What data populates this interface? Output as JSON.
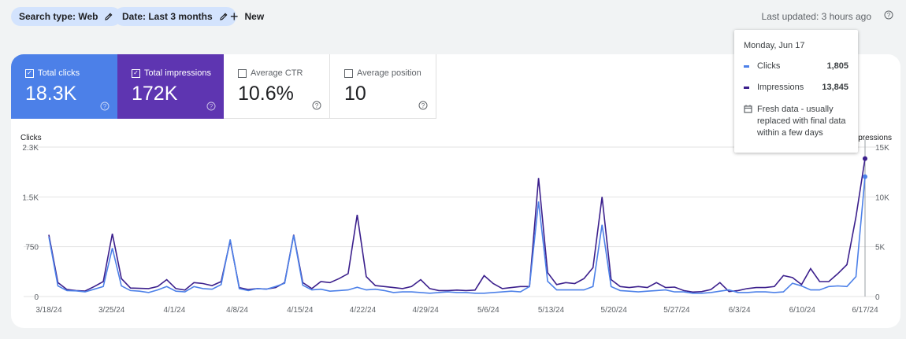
{
  "filters": {
    "search_type": "Search type: Web",
    "date": "Date: Last 3 months",
    "new_label": "New"
  },
  "last_updated": "Last updated: 3 hours ago",
  "metrics": [
    {
      "label": "Total clicks",
      "value": "18.3K",
      "checked": true
    },
    {
      "label": "Total impressions",
      "value": "172K",
      "checked": true
    },
    {
      "label": "Average CTR",
      "value": "10.6%",
      "checked": false
    },
    {
      "label": "Average position",
      "value": "10",
      "checked": false
    }
  ],
  "tooltip": {
    "title": "Monday, Jun 17",
    "rows": [
      {
        "label": "Clicks",
        "value": "1,805"
      },
      {
        "label": "Impressions",
        "value": "13,845"
      }
    ],
    "note": "Fresh data - usually replaced with final data within a few days"
  },
  "colors": {
    "clicks": "#4c80e8",
    "impressions": "#3b1f8c",
    "impressions_card": "#5e35b1"
  },
  "chart_data": {
    "type": "line",
    "left_axis": {
      "label": "Clicks",
      "ticks": [
        "0",
        "750",
        "1.5K",
        "2.3K"
      ],
      "range": [
        0,
        2250
      ]
    },
    "right_axis": {
      "label": "Impressions",
      "ticks": [
        "0",
        "5K",
        "10K",
        "15K"
      ],
      "range": [
        0,
        15000
      ]
    },
    "x_tick_labels": [
      "3/18/24",
      "3/25/24",
      "4/1/24",
      "4/8/24",
      "4/15/24",
      "4/22/24",
      "4/29/24",
      "5/6/24",
      "5/13/24",
      "5/20/24",
      "5/27/24",
      "6/3/24",
      "6/10/24",
      "6/17/24"
    ],
    "x_start": "2024-03-18",
    "x_end": "2024-06-17",
    "grid": true,
    "series": [
      {
        "name": "Clicks",
        "axis": "left",
        "values": [
          900,
          160,
          90,
          85,
          70,
          110,
          150,
          730,
          160,
          90,
          80,
          60,
          100,
          150,
          80,
          70,
          150,
          120,
          110,
          180,
          860,
          120,
          90,
          120,
          110,
          150,
          200,
          920,
          170,
          100,
          110,
          80,
          90,
          100,
          140,
          100,
          110,
          90,
          60,
          70,
          70,
          60,
          50,
          60,
          70,
          60,
          60,
          50,
          50,
          60,
          70,
          80,
          70,
          150,
          1430,
          230,
          100,
          100,
          100,
          100,
          150,
          1080,
          150,
          90,
          80,
          70,
          80,
          90,
          100,
          70,
          70,
          50,
          50,
          60,
          80,
          100,
          60,
          60,
          70,
          70,
          60,
          70,
          200,
          160,
          100,
          100,
          150,
          160,
          150,
          300,
          1805
        ]
      },
      {
        "name": "Impressions",
        "axis": "right",
        "values": [
          6200,
          1400,
          700,
          600,
          550,
          1000,
          1500,
          6300,
          1800,
          850,
          820,
          800,
          1000,
          1700,
          800,
          650,
          1400,
          1300,
          1100,
          1500,
          5600,
          900,
          700,
          800,
          750,
          900,
          1400,
          6200,
          1400,
          800,
          1500,
          1400,
          1800,
          2300,
          8200,
          2000,
          1100,
          1000,
          900,
          800,
          1000,
          1700,
          800,
          600,
          600,
          650,
          600,
          650,
          2100,
          1300,
          800,
          900,
          1000,
          1000,
          11900,
          2400,
          1200,
          1400,
          1300,
          1800,
          2900,
          10000,
          1700,
          1000,
          900,
          1000,
          900,
          1400,
          900,
          950,
          600,
          450,
          500,
          700,
          1400,
          500,
          600,
          800,
          900,
          900,
          1000,
          2100,
          1900,
          1200,
          2800,
          1500,
          1500,
          2300,
          3200,
          8000,
          13845
        ]
      }
    ]
  }
}
